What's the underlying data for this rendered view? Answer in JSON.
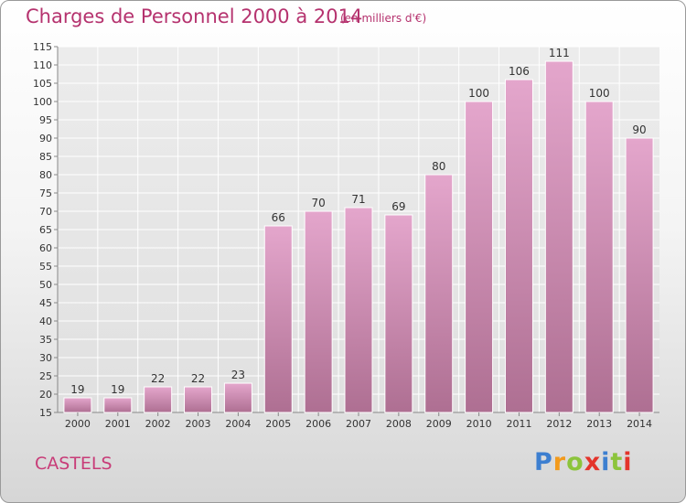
{
  "title": "Charges de Personnel 2000 à 2014",
  "subtitle": "(en milliers d'€)",
  "commune": "CASTELS",
  "logo": {
    "letters": [
      "P",
      "r",
      "o",
      "x",
      "i",
      "t",
      "i"
    ],
    "colors": [
      "#3d7fd0",
      "#f29a1c",
      "#8cc43c",
      "#e4342b",
      "#3d7fd0",
      "#8cc43c",
      "#e4342b"
    ]
  },
  "colors": {
    "title": "#b5326e",
    "bar_top": "#e4a6cc",
    "bar_bottom": "#ae6f92",
    "axis_text": "#333333"
  },
  "chart_data": {
    "type": "bar",
    "title": "Charges de Personnel 2000 à 2014",
    "categories": [
      "2000",
      "2001",
      "2002",
      "2003",
      "2004",
      "2005",
      "2006",
      "2007",
      "2008",
      "2009",
      "2010",
      "2011",
      "2012",
      "2013",
      "2014"
    ],
    "values": [
      19,
      19,
      22,
      22,
      23,
      66,
      70,
      71,
      69,
      80,
      100,
      106,
      111,
      100,
      90
    ],
    "ylim": [
      15,
      115
    ],
    "yticks": [
      15,
      20,
      25,
      30,
      35,
      40,
      45,
      50,
      55,
      60,
      65,
      70,
      75,
      80,
      85,
      90,
      95,
      100,
      105,
      110,
      115
    ],
    "grid": true,
    "data_labels": true
  }
}
